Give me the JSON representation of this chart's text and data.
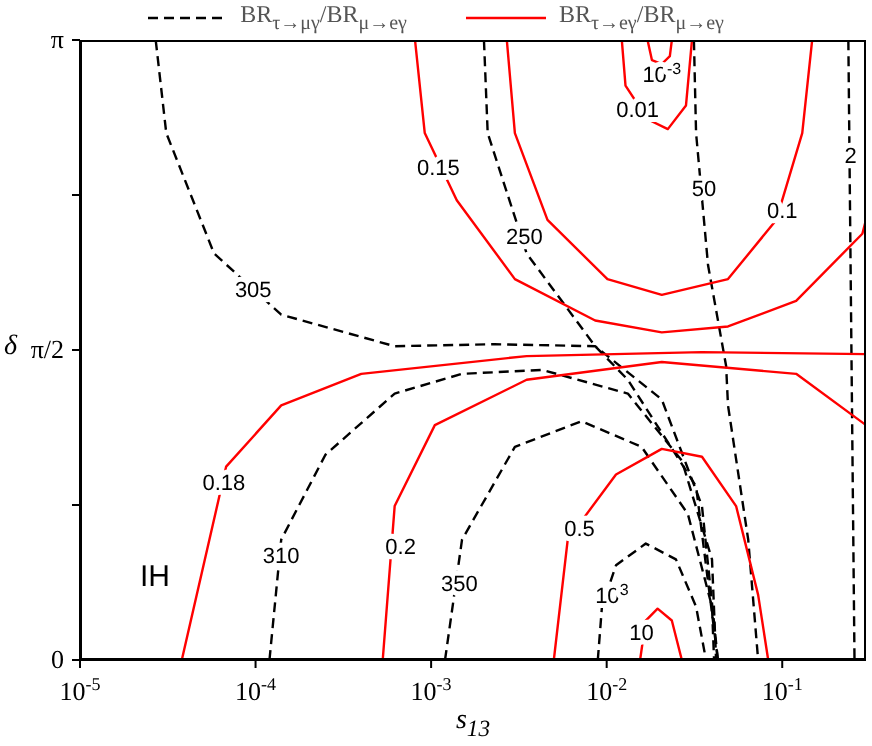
{
  "chart_data": {
    "type": "line",
    "xlabel": "s$_{13}$",
    "ylabel": "δ",
    "log": "x",
    "xlim": [
      1e-05,
      0.3
    ],
    "ylim": [
      0,
      3.1416
    ],
    "xticks": [
      {
        "value": 1e-05,
        "label": "10$^{-5}$"
      },
      {
        "value": 0.0001,
        "label": "10$^{-4}$"
      },
      {
        "value": 0.001,
        "label": "10$^{-3}$"
      },
      {
        "value": 0.01,
        "label": "10$^{-2}$"
      },
      {
        "value": 0.1,
        "label": "10$^{-1}$"
      }
    ],
    "yticks": [
      0,
      {
        "value": 0.7854,
        "label": null
      },
      {
        "value": 1.5708,
        "label": "π/2"
      },
      {
        "value": 2.3562,
        "label": null
      },
      {
        "value": 3.1416,
        "label": "π"
      }
    ],
    "legend": "top",
    "marker": "none",
    "series": [
      {
        "name": "BR$_{τ→μγ}$/BR$_{μ→eγ}$",
        "color": "#000000",
        "line_style": "dashed",
        "x": [
          2.7e-05,
          3.1e-05,
          5.8e-05,
          0.00014,
          0.00062,
          0.0023,
          0.0086,
          0.0206,
          0.0349,
          0.043
        ],
        "values": [
          3.14,
          2.67,
          2.06,
          1.75,
          1.59,
          1.6,
          1.59,
          1.32,
          0.78,
          0
        ]
      },
      {
        "color": "#000000",
        "line_style": "dashed",
        "x": [
          0.00012,
          0.00014,
          0.00025,
          0.00062,
          0.0015,
          0.0043,
          0.0132,
          0.0268,
          0.0398,
          0.042
        ],
        "values": [
          0,
          0.61,
          1.04,
          1.35,
          1.45,
          1.47,
          1.35,
          1.01,
          0.51,
          0
        ]
      },
      {
        "color": "#000000",
        "line_style": "dashed",
        "x": [
          0.0012,
          0.0015,
          0.003,
          0.0072,
          0.0158,
          0.029,
          0.0398,
          0.0409
        ],
        "values": [
          0,
          0.61,
          1.08,
          1.21,
          1.08,
          0.74,
          0.27,
          0
        ]
      },
      {
        "color": "#000000",
        "line_style": "dashed",
        "x": [
          0.0089,
          0.0094,
          0.0113,
          0.0167,
          0.0248,
          0.0323,
          0.0368
        ],
        "values": [
          0,
          0.27,
          0.48,
          0.59,
          0.51,
          0.27,
          0
        ]
      },
      {
        "color": "#000000",
        "line_style": "dashed",
        "x": [
          0.002,
          0.0021,
          0.0035,
          0.0086,
          0.0132,
          0.0323,
          0.043
        ],
        "values": [
          3.14,
          2.67,
          2.06,
          1.59,
          1.42,
          0.88,
          0
        ]
      },
      {
        "color": "#000000",
        "line_style": "dashed",
        "x": [
          0.0314,
          0.0323,
          0.0378,
          0.0479,
          0.0491,
          0.064,
          0.0729
        ],
        "values": [
          3.14,
          2.67,
          2.0,
          1.49,
          1.29,
          0.61,
          0
        ]
      },
      {
        "color": "#000000",
        "line_style": "dashed",
        "x": [
          0.238,
          0.258
        ],
        "values": [
          3.14,
          0
        ]
      },
      {
        "name": "BR$_{τ→eγ}$/BR$_{μ→eγ}$",
        "color": "#ff0000",
        "line_style": "solid",
        "x": [
          3.8e-05,
          6.8e-05,
          0.00014,
          0.0004,
          0.0035,
          0.0349,
          0.3
        ],
        "values": [
          0,
          0.98,
          1.29,
          1.45,
          1.54,
          1.56,
          1.55
        ]
      },
      {
        "color": "#ff0000",
        "line_style": "solid",
        "x": [
          0.00053,
          0.00062,
          0.00105,
          0.0035,
          0.0206,
          0.12,
          0.3
        ],
        "values": [
          0,
          0.78,
          1.19,
          1.42,
          1.51,
          1.45,
          1.19
        ]
      },
      {
        "color": "#ff0000",
        "line_style": "solid",
        "x": [
          0.005,
          0.006,
          0.0113,
          0.0206,
          0.0349,
          0.0546,
          0.0729,
          0.0832
        ],
        "values": [
          0,
          0.61,
          0.94,
          1.07,
          1.03,
          0.78,
          0.33,
          0
        ]
      },
      {
        "color": "#ff0000",
        "line_style": "solid",
        "x": [
          0.0155,
          0.0167,
          0.0195,
          0.0235,
          0.0268
        ],
        "values": [
          0,
          0.2,
          0.26,
          0.2,
          0
        ]
      },
      {
        "color": "#ff0000",
        "line_style": "solid",
        "x": [
          0.00081,
          0.00092,
          0.0014,
          0.003,
          0.0086,
          0.0206,
          0.0491,
          0.12,
          0.286,
          0.3
        ],
        "values": [
          3.14,
          2.67,
          2.33,
          1.93,
          1.72,
          1.66,
          1.69,
          1.82,
          2.16,
          2.23
        ]
      },
      {
        "color": "#ff0000",
        "line_style": "solid",
        "x": [
          0.0027,
          0.003,
          0.0046,
          0.0101,
          0.0206,
          0.0491,
          0.0925,
          0.13,
          0.148
        ],
        "values": [
          3.14,
          2.67,
          2.23,
          1.93,
          1.85,
          1.93,
          2.23,
          2.67,
          3.14
        ]
      },
      {
        "color": "#ff0000",
        "line_style": "solid",
        "x": [
          0.0122,
          0.0128,
          0.0171,
          0.0223,
          0.0283,
          0.0306
        ],
        "values": [
          3.14,
          2.91,
          2.74,
          2.69,
          2.81,
          3.14
        ]
      },
      {
        "color": "#ff0000",
        "line_style": "solid",
        "x": [
          0.0171,
          0.0181,
          0.0206,
          0.0229,
          0.0235
        ],
        "values": [
          3.14,
          3.04,
          3.02,
          3.06,
          3.14
        ]
      }
    ],
    "annotations": [
      {
        "text": "305",
        "x": 9.7e-05,
        "y": 1.88
      },
      {
        "text": "310",
        "x": 0.00014,
        "y": 0.53
      },
      {
        "text": "350",
        "x": 0.00145,
        "y": 0.39
      },
      {
        "text": "10$^{3}$",
        "x": 0.0107,
        "y": 0.33
      },
      {
        "text": "250",
        "x": 0.0034,
        "y": 2.15
      },
      {
        "text": "50",
        "x": 0.0358,
        "y": 2.39
      },
      {
        "text": "2",
        "x": 0.245,
        "y": 2.56
      },
      {
        "text": "0.18",
        "x": 6.6e-05,
        "y": 0.9
      },
      {
        "text": "0.2",
        "x": 0.00067,
        "y": 0.58
      },
      {
        "text": "0.5",
        "x": 0.007,
        "y": 0.67
      },
      {
        "text": "10",
        "x": 0.0158,
        "y": 0.14
      },
      {
        "text": "0.15",
        "x": 0.0011,
        "y": 2.5
      },
      {
        "text": "0.1",
        "x": 0.1,
        "y": 2.28
      },
      {
        "text": "0.01",
        "x": 0.015,
        "y": 2.79
      },
      {
        "text": "10$^{-3}$",
        "x": 0.0206,
        "y": 2.97
      },
      "IH"
    ]
  }
}
